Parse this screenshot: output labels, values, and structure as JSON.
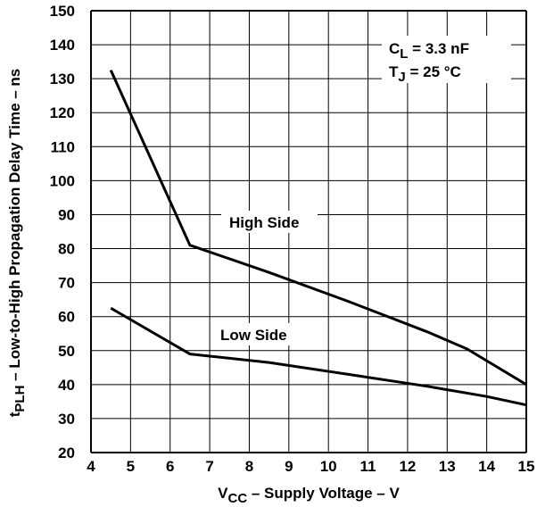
{
  "chart_data": {
    "type": "line",
    "xlabel": {
      "main": "V",
      "sub": "CC",
      "rest": " – Supply  Voltage – V"
    },
    "ylabel": {
      "main": "t",
      "sub": "PLH",
      "rest": "  – Low-to-High Propagation Delay Time – ns"
    },
    "xlim": [
      4,
      15
    ],
    "ylim": [
      20,
      150
    ],
    "x_ticks": [
      "4",
      "5",
      "6",
      "7",
      "8",
      "9",
      "10",
      "11",
      "12",
      "13",
      "14",
      "15"
    ],
    "y_ticks": [
      "20",
      "30",
      "40",
      "50",
      "60",
      "70",
      "80",
      "90",
      "100",
      "110",
      "120",
      "130",
      "140",
      "150"
    ],
    "grid": true,
    "conditions": [
      {
        "main": "C",
        "sub": "L",
        "rest": " = 3.3 nF"
      },
      {
        "main": "T",
        "sub": "J",
        "rest": " = 25 °C"
      }
    ],
    "series": [
      {
        "name": "High Side",
        "points": [
          [
            4.5,
            132.5
          ],
          [
            6.5,
            81
          ],
          [
            8.5,
            73
          ],
          [
            10.5,
            64.5
          ],
          [
            12.5,
            55.5
          ],
          [
            13.5,
            50.5
          ],
          [
            15,
            40
          ]
        ]
      },
      {
        "name": "Low Side",
        "points": [
          [
            4.5,
            62.5
          ],
          [
            6.5,
            49
          ],
          [
            8.5,
            46.5
          ],
          [
            10.5,
            43
          ],
          [
            12.5,
            39.5
          ],
          [
            14,
            36.5
          ],
          [
            15,
            34
          ]
        ]
      }
    ],
    "colors": {
      "line": "#000000",
      "grid": "#000000",
      "background": "#ffffff"
    }
  }
}
